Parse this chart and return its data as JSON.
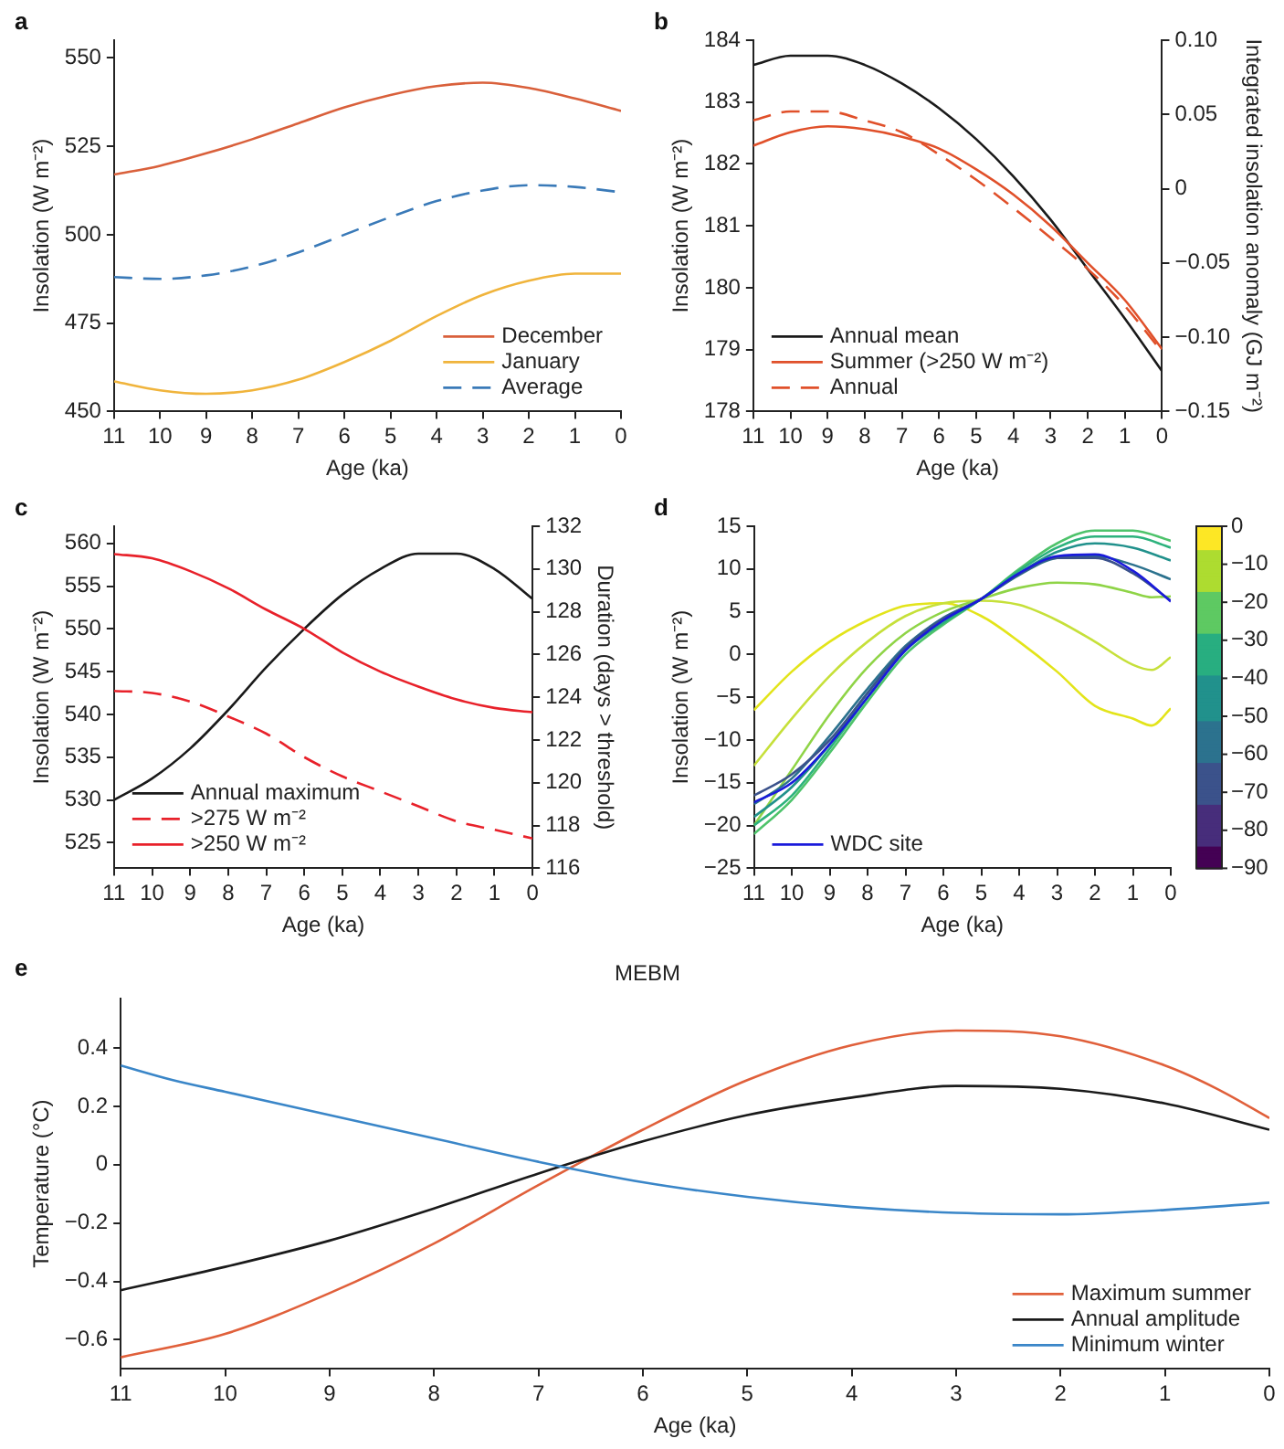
{
  "chart_data": [
    {
      "type": "line",
      "annotations": [
        "a"
      ],
      "xlabel": "Age (ka)",
      "ylabel": "Insolation (W m⁻²)",
      "xlim": [
        11,
        0
      ],
      "xticks": [
        11,
        10,
        9,
        8,
        7,
        6,
        5,
        4,
        3,
        2,
        1,
        0
      ],
      "ylim": [
        450,
        555
      ],
      "yticks": [
        450,
        475,
        500,
        525,
        550
      ],
      "legend": "bottom right",
      "x": [
        11,
        10,
        9,
        8,
        7,
        6,
        5,
        4,
        3,
        2,
        1,
        0
      ],
      "series": [
        {
          "name": "December",
          "color": "#d9603b",
          "values": [
            517,
            519.5,
            523,
            527,
            531.5,
            536,
            539.5,
            542,
            543,
            541.5,
            538.5,
            535
          ]
        },
        {
          "name": "January",
          "color": "#f0b43c",
          "values": [
            458.5,
            456,
            455,
            456,
            459,
            464,
            470,
            477,
            483,
            487,
            489,
            489
          ]
        },
        {
          "name": "Average",
          "color": "#3a7ab8",
          "line_style": "dashed",
          "values": [
            488,
            487.5,
            488.5,
            491,
            495,
            500,
            505,
            509.5,
            512.5,
            514,
            513.5,
            512
          ]
        }
      ]
    },
    {
      "type": "line",
      "annotations": [
        "b"
      ],
      "xlabel": "Age (ka)",
      "ylabel": "Insolation (W m⁻²)",
      "y2label": "Integrated insolation anomaly (GJ m⁻²)",
      "xlim": [
        11,
        0
      ],
      "xticks": [
        11,
        10,
        9,
        8,
        7,
        6,
        5,
        4,
        3,
        2,
        1,
        0
      ],
      "ylim": [
        178,
        184
      ],
      "yticks": [
        178,
        179,
        180,
        181,
        182,
        183,
        184
      ],
      "y2lim": [
        -0.15,
        0.1
      ],
      "y2ticks": [
        {
          "value": -0.15,
          "label": "−0.15"
        },
        {
          "value": -0.1,
          "label": "−0.10"
        },
        {
          "value": -0.05,
          "label": "−0.05"
        },
        0,
        {
          "value": 0.05,
          "label": "0.05"
        },
        {
          "value": 0.1,
          "label": "0.10"
        }
      ],
      "legend": "bottom left",
      "x": [
        11,
        10,
        9,
        8,
        7,
        6,
        5,
        4,
        3,
        2,
        1,
        0
      ],
      "series": [
        {
          "name": "Annual mean",
          "color": "#1a1a1a",
          "values": [
            183.6,
            183.75,
            183.75,
            183.6,
            183.3,
            182.9,
            182.4,
            181.8,
            181.1,
            180.3,
            179.5,
            178.65
          ]
        },
        {
          "name": "Summer (>250 W m⁻²)",
          "color": "#e0502a",
          "axis": "y2",
          "values": [
            0.029,
            0.038,
            0.042,
            0.04,
            0.035,
            0.027,
            0.013,
            -0.004,
            -0.025,
            -0.05,
            -0.075,
            -0.108
          ]
        },
        {
          "name": "Annual",
          "color": "#e0502a",
          "axis": "y2",
          "line_style": "dashed",
          "values": [
            0.046,
            0.052,
            0.052,
            0.046,
            0.038,
            0.023,
            0.006,
            -0.013,
            -0.033,
            -0.054,
            -0.079,
            -0.11
          ]
        }
      ]
    },
    {
      "type": "line",
      "annotations": [
        "c"
      ],
      "xlabel": "Age (ka)",
      "ylabel": "Insolation (W m⁻²)",
      "y2label": "Duration (days > threshold)",
      "xlim": [
        11,
        0
      ],
      "xticks": [
        11,
        10,
        9,
        8,
        7,
        6,
        5,
        4,
        3,
        2,
        1,
        0
      ],
      "ylim": [
        522,
        562
      ],
      "yticks": [
        525,
        530,
        535,
        540,
        545,
        550,
        555,
        560
      ],
      "y2lim": [
        116,
        132
      ],
      "y2ticks": [
        116,
        118,
        120,
        122,
        124,
        126,
        128,
        130,
        132
      ],
      "legend": "bottom left",
      "x": [
        11,
        10,
        9,
        8,
        7,
        6,
        5,
        4,
        3,
        2,
        1,
        0
      ],
      "series": [
        {
          "name": "Annual maximum",
          "color": "#1a1a1a",
          "values": [
            530,
            532.5,
            536,
            540.5,
            545.5,
            550,
            554,
            557,
            558.8,
            558.8,
            557,
            553.5
          ]
        },
        {
          "name": ">275 W m⁻²",
          "color": "#e8212a",
          "axis": "y2",
          "line_style": "dashed",
          "values": [
            124.3,
            124.2,
            123.8,
            123.1,
            122.3,
            121.2,
            120.3,
            119.6,
            118.9,
            118.2,
            117.8,
            117.4
          ]
        },
        {
          "name": ">250 W m⁻²",
          "color": "#e8212a",
          "axis": "y2",
          "values": [
            130.7,
            130.5,
            129.9,
            129.1,
            128.1,
            127.2,
            126.1,
            125.2,
            124.5,
            123.9,
            123.5,
            123.3
          ]
        }
      ]
    },
    {
      "type": "line",
      "annotations": [
        "d"
      ],
      "xlabel": "Age (ka)",
      "ylabel": "Insolation (W m⁻²)",
      "xlim": [
        11,
        0
      ],
      "xticks": [
        11,
        10,
        9,
        8,
        7,
        6,
        5,
        4,
        3,
        2,
        1,
        0
      ],
      "ylim": [
        -25,
        15
      ],
      "yticks": [
        {
          "value": -25,
          "label": "−25"
        },
        {
          "value": -20,
          "label": "−20"
        },
        {
          "value": -15,
          "label": "−15"
        },
        {
          "value": -10,
          "label": "−10"
        },
        {
          "value": -5,
          "label": "−5"
        },
        0,
        5,
        10,
        15
      ],
      "clim": [
        -90,
        0
      ],
      "cticks": [
        0,
        {
          "value": -10,
          "label": "−10"
        },
        {
          "value": -20,
          "label": "−20"
        },
        {
          "value": -30,
          "label": "−30"
        },
        {
          "value": -40,
          "label": "−40"
        },
        {
          "value": -50,
          "label": "−50"
        },
        {
          "value": -60,
          "label": "−60"
        },
        {
          "value": -70,
          "label": "−70"
        },
        {
          "value": -80,
          "label": "−80"
        },
        {
          "value": -90,
          "label": "−90"
        }
      ],
      "legend": "bottom left",
      "x": [
        11,
        10,
        9,
        8,
        7,
        6,
        5,
        4,
        3,
        2,
        1,
        0
      ],
      "series": [
        {
          "color": "#e3e41a",
          "x": [
            11,
            10,
            9,
            8,
            7,
            6,
            5,
            4,
            3,
            2,
            1,
            0.5,
            0
          ],
          "values": [
            -6.5,
            -2,
            1.5,
            4,
            5.7,
            6,
            4.5,
            1.5,
            -2,
            -6,
            -7.5,
            -8.3,
            -6.3
          ]
        },
        {
          "color": "#c6e03a",
          "x": [
            11,
            10,
            9,
            8,
            7,
            6,
            5,
            4,
            3,
            2,
            1,
            0.5,
            0
          ],
          "values": [
            -13,
            -7.5,
            -2.5,
            1.5,
            4.5,
            6,
            6.3,
            5.8,
            4,
            1.5,
            -1.2,
            -1.8,
            -0.3
          ]
        },
        {
          "color": "#8fd447",
          "x": [
            11,
            10,
            9,
            8,
            7,
            6,
            5,
            4,
            3,
            2,
            1,
            0.5,
            0
          ],
          "values": [
            -20,
            -13.5,
            -7,
            -1.5,
            2.5,
            5,
            6.5,
            7.8,
            8.4,
            8.2,
            7.2,
            6.7,
            6.8
          ]
        },
        {
          "color": "#4ec36b",
          "values": [
            -21,
            -17,
            -11.5,
            -5.5,
            0,
            3.5,
            6.5,
            10,
            13,
            14.5,
            14.5,
            13.3
          ]
        },
        {
          "color": "#2db27d",
          "values": [
            -20,
            -16.5,
            -11,
            -5,
            0.5,
            3.7,
            6.5,
            9.8,
            12.5,
            13.8,
            13.8,
            12.5
          ]
        },
        {
          "color": "#21918c",
          "values": [
            -19,
            -15.5,
            -10.5,
            -4.5,
            0.8,
            4,
            6.5,
            9.5,
            12,
            13,
            12.5,
            11
          ]
        },
        {
          "color": "#2c728e",
          "values": [
            -17.5,
            -14.5,
            -9.5,
            -4,
            1,
            4.3,
            6.5,
            9.3,
            11.3,
            11.5,
            10.5,
            8.8
          ]
        },
        {
          "color": "#3b528b",
          "values": [
            -16.5,
            -14,
            -10,
            -4.5,
            0.8,
            4.2,
            6.5,
            9.4,
            11.3,
            11.3,
            9.5,
            6.3
          ]
        },
        {
          "name": "WDC site",
          "color": "#1a1adb",
          "values": [
            -17.3,
            -15,
            -10.5,
            -5,
            0.5,
            4,
            6.5,
            9.5,
            11.5,
            11.7,
            9.8,
            6.2
          ]
        }
      ]
    },
    {
      "type": "line",
      "annotations": [
        "e"
      ],
      "title": "MEBM",
      "xlabel": "Age (ka)",
      "ylabel": "Temperature (°C)",
      "xlim": [
        11,
        0
      ],
      "xticks": [
        11,
        10,
        9,
        8,
        7,
        6,
        5,
        4,
        3,
        2,
        1,
        0
      ],
      "ylim": [
        -0.7,
        0.57
      ],
      "yticks": [
        {
          "value": -0.6,
          "label": "−0.6"
        },
        {
          "value": -0.4,
          "label": "−0.4"
        },
        {
          "value": -0.2,
          "label": "−0.2"
        },
        0,
        0.2,
        0.4
      ],
      "legend": "bottom right",
      "series": [
        {
          "name": "Maximum summer",
          "color": "#e0603b",
          "x": [
            11,
            10,
            9,
            8,
            7,
            6,
            5,
            4,
            3,
            2,
            1,
            0.5,
            0
          ],
          "values": [
            -0.66,
            -0.58,
            -0.44,
            -0.27,
            -0.07,
            0.12,
            0.29,
            0.41,
            0.46,
            0.44,
            0.34,
            0.26,
            0.16
          ]
        },
        {
          "name": "Annual amplitude",
          "color": "#1a1a1a",
          "x": [
            11,
            10,
            9,
            8,
            7,
            6,
            5,
            4,
            3,
            2,
            1,
            0
          ],
          "values": [
            -0.43,
            -0.35,
            -0.26,
            -0.15,
            -0.03,
            0.08,
            0.17,
            0.23,
            0.27,
            0.26,
            0.21,
            0.12
          ]
        },
        {
          "name": "Minimum winter",
          "color": "#3a86c8",
          "x": [
            11,
            10.5,
            10,
            9,
            8,
            7,
            6,
            5,
            4,
            3,
            2,
            1,
            0
          ],
          "values": [
            0.34,
            0.29,
            0.25,
            0.17,
            0.09,
            0.01,
            -0.06,
            -0.11,
            -0.145,
            -0.165,
            -0.17,
            -0.155,
            -0.13
          ]
        }
      ]
    }
  ]
}
